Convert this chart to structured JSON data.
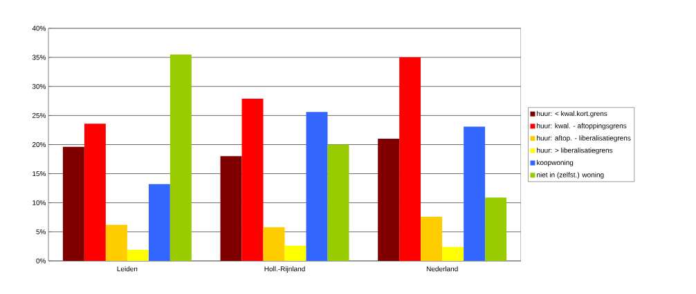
{
  "chart_data": {
    "type": "bar",
    "categories": [
      "Leiden",
      "Holl.-Rijnland",
      "Nederland"
    ],
    "series": [
      {
        "name": "huur: < kwal.kort.grens",
        "color": "#800000",
        "values": [
          19.6,
          18.0,
          21.0
        ]
      },
      {
        "name": "huur: kwal. - aftoppingsgrens",
        "color": "#ff0000",
        "values": [
          23.6,
          27.9,
          35.0
        ]
      },
      {
        "name": "huur: aftop. - liberalisatiegrens",
        "color": "#ffcc00",
        "values": [
          6.2,
          5.8,
          7.6
        ]
      },
      {
        "name": "huur: > liberalisatiegrens",
        "color": "#ffff00",
        "values": [
          1.9,
          2.6,
          2.4
        ]
      },
      {
        "name": "koopwoning",
        "color": "#3366ff",
        "values": [
          13.2,
          25.6,
          23.1
        ]
      },
      {
        "name": "niet in (zelfst.) woning",
        "color": "#99cc00",
        "values": [
          35.5,
          20.0,
          10.9
        ]
      }
    ],
    "ylim": [
      0,
      40
    ],
    "yticks": [
      {
        "value": 0,
        "label": "0%"
      },
      {
        "value": 5,
        "label": "5%"
      },
      {
        "value": 10,
        "label": "10%"
      },
      {
        "value": 15,
        "label": "15%"
      },
      {
        "value": 20,
        "label": "20%"
      },
      {
        "value": 25,
        "label": "25%"
      },
      {
        "value": 30,
        "label": "30%"
      },
      {
        "value": 35,
        "label": "35%"
      },
      {
        "value": 40,
        "label": "40%"
      }
    ],
    "grid": "y",
    "legend": "right"
  }
}
